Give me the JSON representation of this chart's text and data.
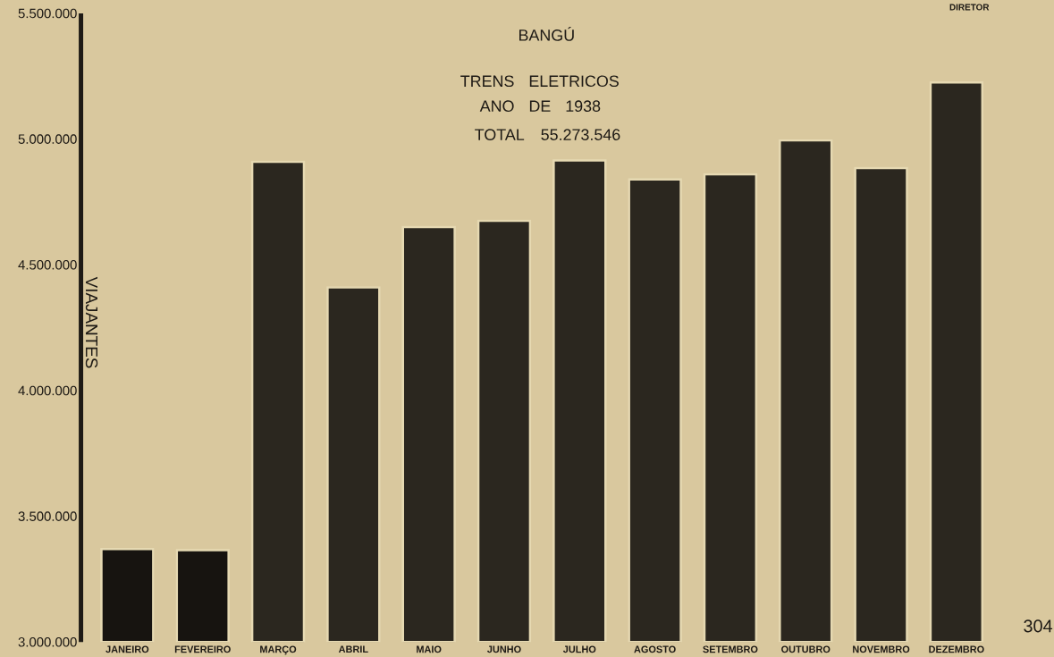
{
  "chart_data": {
    "type": "bar",
    "title": "BANGÚ",
    "subtitle": "TRENS ELETRICOS",
    "ylabel": "VIAJANTES",
    "annotations": [
      "ANO DE 1938",
      "TOTAL 55.273.546",
      "304",
      "DIRETOR"
    ],
    "categories": [
      "JANEIRO",
      "FEVEREIRO",
      "MARÇO",
      "ABRIL",
      "MAIO",
      "JUNHO",
      "JULHO",
      "AGOSTO",
      "SETEMBRO",
      "OUTUBRO",
      "NOVEMBRO",
      "DEZEMBRO"
    ],
    "values": [
      3370000,
      3365000,
      4910000,
      4410000,
      4650000,
      4675000,
      4915000,
      4840000,
      4860000,
      4995000,
      4885000,
      5225000
    ],
    "colors": [
      "#171410",
      "#171410",
      "#2b271f",
      "#2b271f",
      "#2b271f",
      "#2b271f",
      "#2b271f",
      "#2b271f",
      "#2b271f",
      "#2b271f",
      "#2b271f",
      "#2b271f"
    ],
    "ylim": [
      3000000,
      5500000
    ],
    "yticks": [
      {
        "value": 3000000,
        "label": "3.000.000"
      },
      {
        "value": 3500000,
        "label": "3.500.000"
      },
      {
        "value": 4000000,
        "label": "4.000.000"
      },
      {
        "value": 4500000,
        "label": "4.500.000"
      },
      {
        "value": 5000000,
        "label": "5.000.000"
      },
      {
        "value": 5500000,
        "label": "5.500.000"
      }
    ]
  }
}
